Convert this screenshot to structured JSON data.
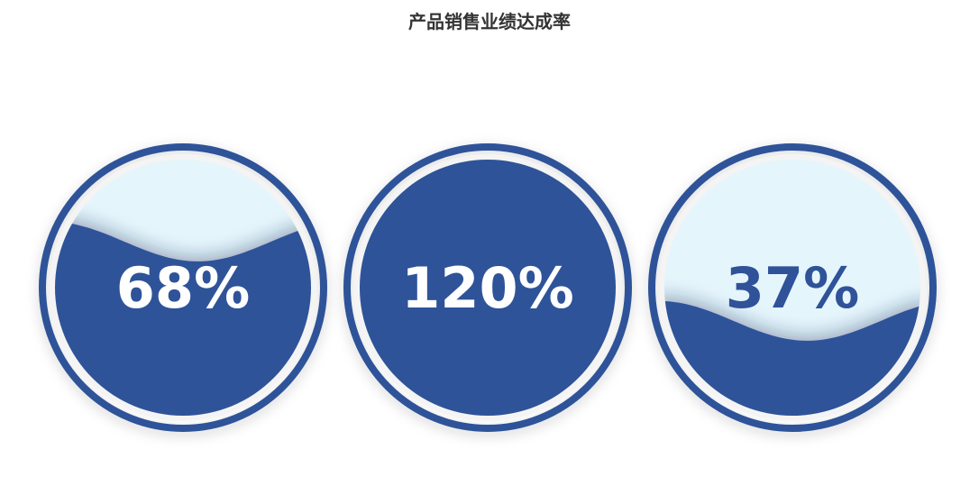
{
  "chart_data": {
    "type": "liquidfill",
    "title": "产品销售业绩达成率",
    "series": [
      {
        "value": 0.68,
        "label": "68%"
      },
      {
        "value": 1.2,
        "label": "120%"
      },
      {
        "value": 0.37,
        "label": "37%"
      }
    ]
  },
  "colors": {
    "wave": "#2f5299",
    "background_light": "#e4f5fc",
    "text_on_wave": "#ffffff",
    "text_on_background": "#2f5299"
  }
}
